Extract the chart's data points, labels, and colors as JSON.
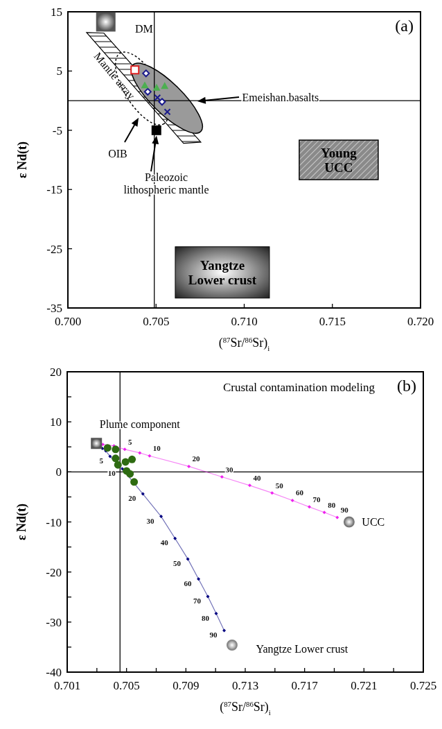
{
  "chart_data": [
    {
      "type": "scatter",
      "xlabel": "($^{87}$Sr/$^{86}$Sr)$_{i}$",
      "ylabel": "ε Nd(t)",
      "xlim": [
        0.7,
        0.72
      ],
      "ylim": [
        -35,
        15
      ],
      "xticks": [
        {
          "value": 0.7,
          "label": "0.700"
        },
        0.705,
        {
          "value": 0.71,
          "label": "0.710"
        },
        0.715,
        {
          "value": 0.72,
          "label": "0.720"
        }
      ],
      "yticks": [
        -35,
        -25,
        -15,
        -5,
        5,
        15
      ],
      "ref_lines": [
        {
          "axis": "x",
          "value": 0.7049
        },
        {
          "axis": "y",
          "value": 0
        }
      ],
      "series": [
        {
          "color": "#555555",
          "marker": "square",
          "x": [
            0.70215
          ],
          "values": [
            13.3
          ]
        },
        {
          "color": "#000000",
          "marker": "square",
          "x": [
            0.70502
          ],
          "values": [
            -5.0
          ]
        },
        {
          "color": "#dd2222",
          "marker": "square",
          "x": [
            0.7038
          ],
          "values": [
            5.2
          ]
        },
        {
          "color": "#1a1a8c",
          "marker": "diamond",
          "x": [
            0.70443,
            0.70453,
            0.70534
          ],
          "values": [
            4.6,
            1.5,
            -0.2
          ]
        },
        {
          "color": "#4caf50",
          "marker": "triangle",
          "x": [
            0.70436,
            0.70503,
            0.70549
          ],
          "values": [
            2.6,
            2.2,
            2.5
          ]
        },
        {
          "color": "#1a1a8c",
          "marker": "cross",
          "x": [
            0.70508,
            0.70564
          ],
          "values": [
            0.5,
            -1.9
          ]
        }
      ],
      "annotations": [
        "(a)",
        "DM",
        "Mantle array",
        "Emeishan basalts",
        "OIB",
        "Paleozoic lithospheric mantle",
        "Young UCC",
        "Yangtze Lower crust"
      ]
    },
    {
      "type": "scatter",
      "xlabel": "($^{87}$Sr/$^{86}$Sr)$_{i}$",
      "ylabel": "ε Nd(t)",
      "xlim": [
        0.701,
        0.725
      ],
      "ylim": [
        -40,
        20
      ],
      "xticks": [
        0.701,
        {
          "value": 0.703,
          "label": null
        },
        0.705,
        {
          "value": 0.707,
          "label": null
        },
        0.709,
        {
          "value": 0.711,
          "label": null
        },
        0.713,
        {
          "value": 0.715,
          "label": null
        },
        0.717,
        {
          "value": 0.719,
          "label": null
        },
        0.721,
        {
          "value": 0.723,
          "label": null
        },
        0.725
      ],
      "yticks": [
        -40,
        {
          "value": -35,
          "label": null
        },
        -30,
        {
          "value": -25,
          "label": null
        },
        -20,
        {
          "value": -15,
          "label": null
        },
        -10,
        {
          "value": -5,
          "label": null
        },
        0,
        {
          "value": 5,
          "label": null
        },
        10,
        {
          "value": 15,
          "label": null
        },
        20
      ],
      "ref_lines": [
        {
          "axis": "x",
          "value": 0.70456
        },
        {
          "axis": "y",
          "value": 0
        }
      ],
      "series": [
        {
          "type": "line",
          "color": "#ee22ee",
          "marker": "diamond",
          "x": [
            0.7034,
            0.70415,
            0.70488,
            0.70589,
            0.70655,
            0.7092,
            0.71143,
            0.7133,
            0.71481,
            0.71618,
            0.71732,
            0.71833,
            0.7192
          ],
          "values": [
            5.5,
            5.2,
            4.5,
            3.8,
            3.2,
            1.1,
            -1.0,
            -2.7,
            -4.2,
            -5.7,
            -7.0,
            -8.1,
            -9.1
          ]
        },
        {
          "type": "line",
          "color": "#000080",
          "marker": "diamond",
          "x": [
            0.70337,
            0.7036,
            0.70389,
            0.70472,
            0.7061,
            0.70733,
            0.70827,
            0.70913,
            0.70985,
            0.71048,
            0.71104,
            0.71158
          ],
          "values": [
            4.7,
            4.2,
            3.1,
            0.6,
            -4.4,
            -8.9,
            -13.3,
            -17.4,
            -21.4,
            -24.9,
            -28.3,
            -31.7
          ]
        },
        {
          "color": "#2e6b12",
          "marker": "circle",
          "x": [
            0.70372,
            0.70426,
            0.70426,
            0.70442,
            0.70493,
            0.70537,
            0.705,
            0.70523,
            0.70551
          ],
          "values": [
            4.8,
            4.5,
            2.7,
            1.4,
            2.0,
            2.5,
            0.2,
            -0.4,
            -2.0
          ]
        },
        {
          "color": "#555555",
          "marker": "square",
          "x": [
            0.70297
          ],
          "values": [
            5.7
          ]
        },
        {
          "color": "#777777",
          "marker": "circle",
          "x": [
            0.72
          ],
          "values": [
            -10
          ]
        },
        {
          "color": "#888888",
          "marker": "circle",
          "x": [
            0.71211
          ],
          "values": [
            -34.6
          ]
        }
      ],
      "annotations": [
        "Crustal contamination modeling",
        "(b)",
        "Plume component",
        "UCC",
        "Yangtze Lower crust",
        {
          "text": "5",
          "x": 0.70488,
          "y": 4.5
        },
        {
          "text": "10",
          "x": 0.70655,
          "y": 3.2
        },
        {
          "text": "20",
          "x": 0.7092,
          "y": 1.1
        },
        {
          "text": "30",
          "x": 0.71143,
          "y": -1.0
        },
        {
          "text": "40",
          "x": 0.7133,
          "y": -2.7
        },
        {
          "text": "50",
          "x": 0.71481,
          "y": -4.2
        },
        {
          "text": "60",
          "x": 0.71618,
          "y": -5.7
        },
        {
          "text": "70",
          "x": 0.71732,
          "y": -7.0
        },
        {
          "text": "80",
          "x": 0.71833,
          "y": -8.1
        },
        {
          "text": "90",
          "x": 0.7192,
          "y": -9.1
        },
        {
          "text": "5",
          "x": 0.70389,
          "y": 3.1
        },
        {
          "text": "10",
          "x": 0.70472,
          "y": 0.6
        },
        {
          "text": "20",
          "x": 0.7061,
          "y": -4.4
        },
        {
          "text": "30",
          "x": 0.70733,
          "y": -8.9
        },
        {
          "text": "40",
          "x": 0.70827,
          "y": -13.3
        },
        {
          "text": "50",
          "x": 0.70913,
          "y": -17.4
        },
        {
          "text": "60",
          "x": 0.70985,
          "y": -21.4
        },
        {
          "text": "70",
          "x": 0.71048,
          "y": -24.9
        },
        {
          "text": "80",
          "x": 0.71104,
          "y": -28.3
        },
        {
          "text": "90",
          "x": 0.71158,
          "y": -31.7
        }
      ]
    }
  ]
}
